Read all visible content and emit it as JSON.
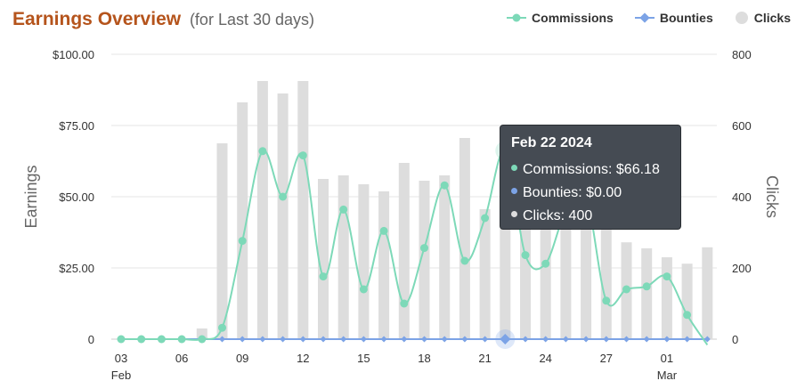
{
  "header": {
    "title": "Earnings Overview",
    "subtitle": "(for Last 30 days)"
  },
  "legend": {
    "items": [
      {
        "label": "Commissions",
        "color": "#7dd9b8",
        "symbol": "line-circle"
      },
      {
        "label": "Bounties",
        "color": "#7ca3e6",
        "symbol": "line-diamond"
      },
      {
        "label": "Clicks",
        "color": "#dddddd",
        "symbol": "circle"
      }
    ]
  },
  "tooltip": {
    "date": "Feb 22 2024",
    "commissions": "Commissions: $66.18",
    "bounties": "Bounties: $0.00",
    "clicks": "Clicks: 400"
  },
  "chart_data": {
    "type": "bar+line",
    "title": "Earnings Overview",
    "left_axis": {
      "label": "Earnings",
      "ticks": [
        "0",
        "$25.00",
        "$50.00",
        "$75.00",
        "$100.00"
      ],
      "range": [
        0,
        100
      ]
    },
    "right_axis": {
      "label": "Clicks",
      "ticks": [
        "0",
        "200",
        "400",
        "600",
        "800"
      ],
      "range": [
        0,
        800
      ]
    },
    "x_tick_labels": [
      {
        "day": 3,
        "label": "03",
        "sub": "Feb"
      },
      {
        "day": 6,
        "label": "06"
      },
      {
        "day": 9,
        "label": "09"
      },
      {
        "day": 12,
        "label": "12"
      },
      {
        "day": 15,
        "label": "15"
      },
      {
        "day": 18,
        "label": "18"
      },
      {
        "day": 21,
        "label": "21"
      },
      {
        "day": 24,
        "label": "24"
      },
      {
        "day": 27,
        "label": "27"
      },
      {
        "day": 30,
        "label": "01",
        "sub": "Mar"
      }
    ],
    "dates": [
      "Feb 03",
      "Feb 04",
      "Feb 05",
      "Feb 06",
      "Feb 07",
      "Feb 08",
      "Feb 09",
      "Feb 10",
      "Feb 11",
      "Feb 12",
      "Feb 13",
      "Feb 14",
      "Feb 15",
      "Feb 16",
      "Feb 17",
      "Feb 18",
      "Feb 19",
      "Feb 20",
      "Feb 21",
      "Feb 22",
      "Feb 23",
      "Feb 24",
      "Feb 25",
      "Feb 26",
      "Feb 27",
      "Feb 28",
      "Feb 29",
      "Mar 01",
      "Mar 02",
      "Mar 03"
    ],
    "series": [
      {
        "name": "Clicks",
        "type": "bar",
        "axis": "right",
        "color": "#dddddd",
        "values": [
          0,
          0,
          0,
          0,
          30,
          550,
          665,
          725,
          690,
          725,
          450,
          460,
          435,
          415,
          495,
          445,
          460,
          565,
          365,
          400,
          330,
          380,
          390,
          330,
          315,
          272,
          255,
          230,
          212,
          258
        ]
      },
      {
        "name": "Commissions",
        "type": "line",
        "axis": "left",
        "color": "#7dd9b8",
        "values": [
          0,
          0,
          0,
          0,
          0,
          4,
          34.5,
          66,
          50,
          64.5,
          22,
          45.5,
          17.5,
          38,
          12.5,
          32,
          54,
          27.5,
          42.5,
          66.18,
          29.5,
          26.5,
          45,
          50,
          13.5,
          17.5,
          18.5,
          22,
          8.5,
          -2
        ]
      },
      {
        "name": "Bounties",
        "type": "line",
        "axis": "left",
        "color": "#7ca3e6",
        "values": [
          0,
          0,
          0,
          0,
          0,
          0,
          0,
          0,
          0,
          0,
          0,
          0,
          0,
          0,
          0,
          0,
          0,
          0,
          0,
          0,
          0,
          0,
          0,
          0,
          0,
          0,
          0,
          0,
          0,
          0
        ]
      }
    ],
    "highlighted_index": 19,
    "grid": true,
    "legend_position": "top-right"
  }
}
